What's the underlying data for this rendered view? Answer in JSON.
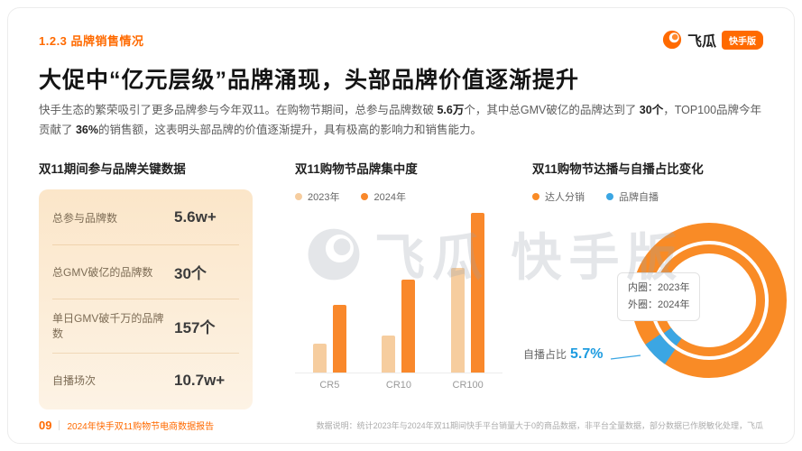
{
  "header": {
    "section_label": "1.2.3 品牌销售情况",
    "title": "大促中“亿元层级”品牌涌现，头部品牌价值逐渐提升",
    "logo_text": "飞瓜",
    "logo_badge": "快手版"
  },
  "intro": {
    "segments": [
      {
        "text": "快手生态的繁荣吸引了更多品牌参与今年双11。在购物节期间，总参与品牌数破 ",
        "bold": false
      },
      {
        "text": "5.6万",
        "bold": true
      },
      {
        "text": "个，其中总GMV破亿的品牌达到了 ",
        "bold": false
      },
      {
        "text": "30个",
        "bold": true
      },
      {
        "text": "，TOP100品牌今年贡献了 ",
        "bold": false
      },
      {
        "text": "36%",
        "bold": true
      },
      {
        "text": "的销售额，这表明头部品牌的价值逐渐提升，具有极高的影响力和销售能力。",
        "bold": false
      }
    ]
  },
  "key_data": {
    "title": "双11期间参与品牌关键数据",
    "rows": [
      {
        "label": "总参与品牌数",
        "value": "5.6w+"
      },
      {
        "label": "总GMV破亿的品牌数",
        "value": "30个"
      },
      {
        "label": "单日GMV破千万的品牌数",
        "value": "157个"
      },
      {
        "label": "自播场次",
        "value": "10.7w+"
      }
    ]
  },
  "chart_data": [
    {
      "type": "bar",
      "title": "双11购物节品牌集中度",
      "categories": [
        "CR5",
        "CR10",
        "CR100"
      ],
      "series": [
        {
          "name": "2023年",
          "color": "#F6CD9F",
          "values": [
            18,
            23,
            65
          ]
        },
        {
          "name": "2024年",
          "color": "#F9882B",
          "values": [
            42,
            58,
            100
          ]
        }
      ],
      "ylim": [
        0,
        100
      ],
      "grid": false,
      "legend_position": "top"
    },
    {
      "type": "donut",
      "title": "双11购物节达播与自播占比变化",
      "legend": [
        {
          "label": "达人分销",
          "color": "#F98B26"
        },
        {
          "label": "品牌自播",
          "color": "#3BA6E3"
        }
      ],
      "rings": [
        {
          "name": "内圈：2023年",
          "slices": [
            {
              "label": "达人分销",
              "value": 94.9
            },
            {
              "label": "品牌自播",
              "value": 5.1
            }
          ]
        },
        {
          "name": "外圈：2024年",
          "slices": [
            {
              "label": "达人分销",
              "value": 94.3
            },
            {
              "label": "品牌自播",
              "value": 5.7
            }
          ]
        }
      ],
      "ring_note": [
        "内圈：2023年",
        "外圈：2024年"
      ],
      "callout": {
        "label": "自播占比",
        "value": "5.7%"
      }
    }
  ],
  "watermark": {
    "text": "飞瓜 快手版"
  },
  "footer": {
    "page_number": "09",
    "report_title": "2024年快手双11购物节电商数据报告",
    "data_note": "数据说明：统计2023年与2024年双11期间快手平台销量大于0的商品数据，非平台全量数据，部分数据已作脱敏化处理，飞瓜"
  },
  "colors": {
    "brand_orange": "#FF6A00",
    "donut_orange": "#F98B26",
    "donut_blue": "#3BA6E3"
  }
}
